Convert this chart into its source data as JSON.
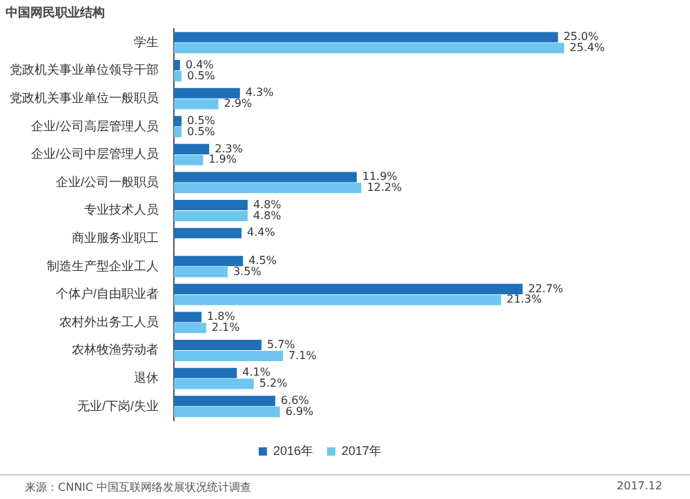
{
  "chart_data": {
    "type": "bar",
    "orientation": "horizontal",
    "title": "中国网民职业结构",
    "categories": [
      "学生",
      "党政机关事业单位领导干部",
      "党政机关事业单位一般职员",
      "企业/公司高层管理人员",
      "企业/公司中层管理人员",
      "企业/公司一般职员",
      "专业技术人员",
      "商业服务业职工",
      "制造生产型企业工人",
      "个体户/自由职业者",
      "农村外出务工人员",
      "农林牧渔劳动者",
      "退休",
      "无业/下岗/失业"
    ],
    "series": [
      {
        "name": "2016年",
        "color": "#1f70b8",
        "values": [
          25.0,
          0.4,
          4.3,
          0.5,
          2.3,
          11.9,
          4.8,
          4.4,
          4.5,
          22.7,
          1.8,
          5.7,
          4.1,
          6.6
        ],
        "value_labels": [
          "25.0%",
          "0.4%",
          "4.3%",
          "0.5%",
          "2.3%",
          "11.9%",
          "4.8%",
          "4.4%",
          "4.5%",
          "22.7%",
          "1.8%",
          "5.7%",
          "4.1%",
          "6.6%"
        ]
      },
      {
        "name": "2017年",
        "color": "#6ec6ee",
        "values": [
          25.4,
          0.5,
          2.9,
          0.5,
          1.9,
          12.2,
          4.8,
          null,
          3.5,
          21.3,
          2.1,
          7.1,
          5.2,
          6.9
        ],
        "value_labels": [
          "25.4%",
          "0.5%",
          "2.9%",
          "0.5%",
          "1.9%",
          "12.2%",
          "4.8%",
          null,
          "3.5%",
          "21.3%",
          "2.1%",
          "7.1%",
          "5.2%",
          "6.9%"
        ]
      }
    ],
    "legend": "bottom",
    "grid": false,
    "annotations": [
      "来源：CNNIC 中国互联网络发展状况统计调查",
      "2017.12"
    ]
  }
}
